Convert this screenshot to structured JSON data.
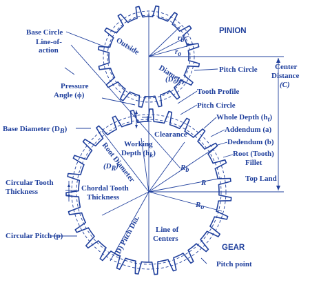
{
  "labels": {
    "pinion": "PINION",
    "gear": "GEAR",
    "base_circle": "Base Circle",
    "line_of": "Line-of-",
    "action": "action",
    "pressure_angle": "Pressure",
    "pressure_angle2": "Angle (ϕ)",
    "outside": "Outside",
    "diameter": "Diameter",
    "do": "(D",
    "do_sub": "o",
    "do_close": ")",
    "pitch_circle_top": "Pitch Circle",
    "pitch_circle_mid": "Pitch Circle",
    "tooth_profile": "Tooth Profile",
    "center_distance_1": "Center",
    "center_distance_2": "Distance",
    "center_distance_3": "(C)",
    "whole_depth": "Whole Depth (h",
    "whole_depth_sub": "t",
    "whole_depth_close": ")",
    "addendum": "Addendum (a)",
    "dedendum": "Dedendum (b)",
    "root_tooth": "Root (Tooth)",
    "fillet": "Fillet",
    "top_land": "Top Land",
    "base_diameter": "Base Diameter (D",
    "base_diameter_sub": "B",
    "base_diameter_close": ")",
    "clearance": "Clearance",
    "working": "Working",
    "depth_hk": "Depth (h",
    "depth_hk_sub": "k",
    "depth_hk_close": ")",
    "root_diameter": "Root Diameter",
    "dr": "(D",
    "dr_sub": "R",
    "dr_close": ")",
    "circular_tooth": "Circular Tooth",
    "thickness": "Thickness",
    "chordal_tooth": "Chordal Tooth",
    "chordal_thickness": "Thickness",
    "circular_pitch": "Circular Pitch (p)",
    "pitch_dia": "(D) Pitch Dia.",
    "line_of_centers_1": "Line of",
    "line_of_centers_2": "Centers",
    "pitch_point": "Pitch point",
    "rb_small": "r",
    "rb_small_sub": "b",
    "r_small": "r",
    "ro_small": "r",
    "ro_small_sub": "o",
    "Rb": "R",
    "Rb_sub": "b",
    "R": "R",
    "Ro": "R",
    "Ro_sub": "o"
  },
  "pinion_teeth": 16,
  "gear_teeth": 27,
  "colors": {
    "ink": "#1f3f9c",
    "background": "#ffffff"
  }
}
